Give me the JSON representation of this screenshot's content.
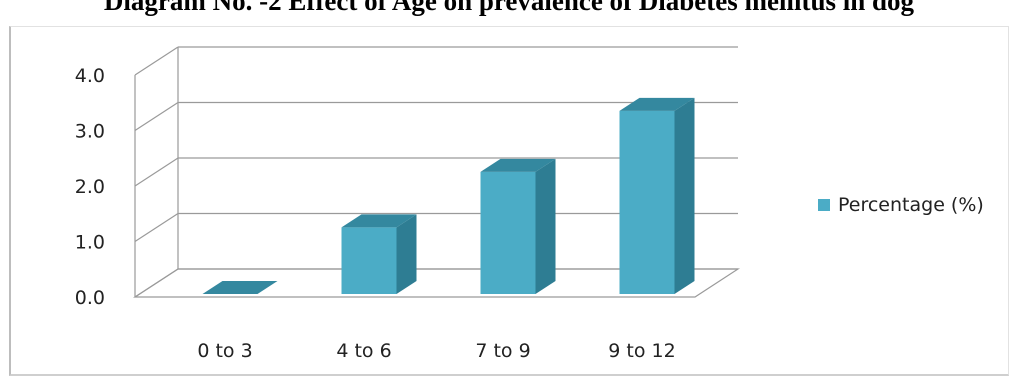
{
  "title": "Diagram No. -2 Effect of Age on prevalence of Diabetes mellitus in dog",
  "chart_data": {
    "type": "bar",
    "categories": [
      "0 to 3",
      "4 to 6",
      "7 to 9",
      "9 to 12"
    ],
    "series": [
      {
        "name": "Percentage (%)",
        "values": [
          0.0,
          1.2,
          2.2,
          3.3
        ]
      }
    ],
    "yticks": [
      "0.0",
      "1.0",
      "2.0",
      "3.0",
      "4.0"
    ],
    "ylim": [
      0,
      4
    ],
    "grid": true,
    "legend_position": "right",
    "colors": {
      "front": "#4bacc6",
      "side": "#2e7d93",
      "top": "#34889f"
    }
  }
}
